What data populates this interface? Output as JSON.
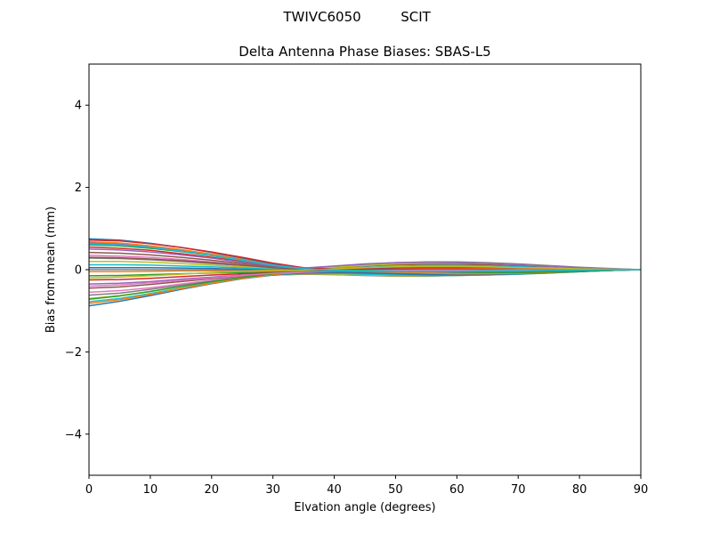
{
  "figure": {
    "suptitle_left": "TWIVC6050",
    "suptitle_right": "SCIT"
  },
  "chart_data": {
    "type": "line",
    "title": "Delta Antenna Phase Biases: SBAS-L5",
    "xlabel": "Elvation angle (degrees)",
    "ylabel": "Bias from mean (mm)",
    "xlim": [
      0,
      90
    ],
    "ylim": [
      -5,
      5
    ],
    "xticks": [
      0,
      10,
      20,
      30,
      40,
      50,
      60,
      70,
      80,
      90
    ],
    "yticks": [
      -4,
      -2,
      0,
      2,
      4
    ],
    "grid": false,
    "legend": "none",
    "x": [
      0,
      5,
      10,
      15,
      20,
      25,
      30,
      35,
      40,
      45,
      50,
      55,
      60,
      65,
      70,
      75,
      80,
      85,
      90
    ],
    "series": [
      {
        "color": "#1f77b4",
        "values": [
          0.75,
          0.72,
          0.64,
          0.54,
          0.42,
          0.28,
          0.13,
          0.02,
          -0.05,
          -0.08,
          -0.09,
          -0.08,
          -0.07,
          -0.05,
          -0.04,
          -0.03,
          -0.02,
          -0.01,
          0.0
        ]
      },
      {
        "color": "#ff7f0e",
        "values": [
          0.68,
          0.65,
          0.58,
          0.49,
          0.38,
          0.25,
          0.11,
          0.01,
          -0.04,
          -0.06,
          -0.07,
          -0.06,
          -0.05,
          -0.04,
          -0.03,
          -0.02,
          -0.01,
          0.0,
          0.0
        ]
      },
      {
        "color": "#2ca02c",
        "values": [
          0.6,
          0.58,
          0.52,
          0.44,
          0.34,
          0.22,
          0.1,
          0.02,
          -0.02,
          -0.03,
          -0.03,
          -0.03,
          -0.02,
          -0.02,
          -0.01,
          -0.01,
          0.0,
          0.0,
          0.0
        ]
      },
      {
        "color": "#d62728",
        "values": [
          0.55,
          0.52,
          0.47,
          0.39,
          0.3,
          0.19,
          0.08,
          0.0,
          -0.02,
          -0.01,
          0.01,
          0.03,
          0.04,
          0.04,
          0.04,
          0.03,
          0.02,
          0.01,
          0.0
        ]
      },
      {
        "color": "#9467bd",
        "values": [
          0.5,
          0.48,
          0.43,
          0.36,
          0.28,
          0.18,
          0.08,
          0.01,
          0.02,
          0.05,
          0.07,
          0.08,
          0.08,
          0.07,
          0.06,
          0.04,
          0.03,
          0.01,
          0.0
        ]
      },
      {
        "color": "#8c564b",
        "values": [
          0.42,
          0.4,
          0.36,
          0.3,
          0.23,
          0.15,
          0.06,
          0.02,
          0.05,
          0.09,
          0.12,
          0.13,
          0.13,
          0.12,
          0.1,
          0.07,
          0.04,
          0.02,
          0.0
        ]
      },
      {
        "color": "#e377c2",
        "values": [
          0.35,
          0.33,
          0.3,
          0.25,
          0.19,
          0.12,
          0.05,
          0.03,
          0.07,
          0.12,
          0.15,
          0.17,
          0.17,
          0.15,
          0.12,
          0.09,
          0.05,
          0.02,
          0.0
        ]
      },
      {
        "color": "#7f7f7f",
        "values": [
          0.28,
          0.27,
          0.24,
          0.2,
          0.15,
          0.1,
          0.04,
          0.03,
          0.08,
          0.13,
          0.17,
          0.19,
          0.19,
          0.17,
          0.14,
          0.1,
          0.06,
          0.03,
          0.0
        ]
      },
      {
        "color": "#bcbd22",
        "values": [
          0.2,
          0.2,
          0.18,
          0.15,
          0.11,
          0.07,
          0.03,
          0.02,
          0.06,
          0.1,
          0.14,
          0.16,
          0.16,
          0.15,
          0.12,
          0.09,
          0.05,
          0.02,
          0.0
        ]
      },
      {
        "color": "#17becf",
        "values": [
          0.12,
          0.12,
          0.11,
          0.09,
          0.07,
          0.04,
          0.01,
          0.0,
          0.03,
          0.06,
          0.08,
          0.1,
          0.1,
          0.09,
          0.07,
          0.05,
          0.03,
          0.01,
          0.0
        ]
      },
      {
        "color": "#1f77b4",
        "values": [
          0.05,
          0.05,
          0.05,
          0.04,
          0.03,
          0.01,
          -0.01,
          -0.02,
          0.0,
          0.03,
          0.05,
          0.06,
          0.06,
          0.05,
          0.04,
          0.03,
          0.02,
          0.01,
          0.0
        ]
      },
      {
        "color": "#ff7f0e",
        "values": [
          -0.05,
          -0.05,
          -0.04,
          -0.03,
          -0.03,
          -0.03,
          -0.04,
          -0.04,
          -0.02,
          0.0,
          0.02,
          0.03,
          0.03,
          0.03,
          0.02,
          0.02,
          0.01,
          0.0,
          0.0
        ]
      },
      {
        "color": "#2ca02c",
        "values": [
          -0.15,
          -0.14,
          -0.12,
          -0.1,
          -0.08,
          -0.07,
          -0.06,
          -0.05,
          -0.03,
          -0.01,
          0.0,
          0.01,
          0.01,
          0.01,
          0.01,
          0.0,
          0.0,
          0.0,
          0.0
        ]
      },
      {
        "color": "#d62728",
        "values": [
          -0.25,
          -0.24,
          -0.21,
          -0.17,
          -0.13,
          -0.1,
          -0.08,
          -0.07,
          -0.06,
          -0.05,
          -0.05,
          -0.04,
          -0.04,
          -0.03,
          -0.03,
          -0.02,
          -0.01,
          -0.01,
          0.0
        ]
      },
      {
        "color": "#9467bd",
        "values": [
          -0.35,
          -0.33,
          -0.29,
          -0.23,
          -0.18,
          -0.13,
          -0.1,
          -0.09,
          -0.09,
          -0.1,
          -0.1,
          -0.09,
          -0.08,
          -0.07,
          -0.05,
          -0.04,
          -0.02,
          -0.01,
          0.0
        ]
      },
      {
        "color": "#8c564b",
        "values": [
          -0.45,
          -0.42,
          -0.36,
          -0.29,
          -0.22,
          -0.16,
          -0.12,
          -0.1,
          -0.11,
          -0.12,
          -0.13,
          -0.12,
          -0.11,
          -0.09,
          -0.07,
          -0.05,
          -0.03,
          -0.01,
          0.0
        ]
      },
      {
        "color": "#e377c2",
        "values": [
          -0.55,
          -0.51,
          -0.44,
          -0.35,
          -0.26,
          -0.18,
          -0.13,
          -0.11,
          -0.12,
          -0.14,
          -0.15,
          -0.14,
          -0.12,
          -0.1,
          -0.08,
          -0.06,
          -0.04,
          -0.02,
          0.0
        ]
      },
      {
        "color": "#7f7f7f",
        "values": [
          -0.62,
          -0.57,
          -0.48,
          -0.38,
          -0.28,
          -0.19,
          -0.13,
          -0.11,
          -0.12,
          -0.14,
          -0.16,
          -0.16,
          -0.14,
          -0.12,
          -0.1,
          -0.07,
          -0.04,
          -0.02,
          0.0
        ]
      },
      {
        "color": "#bcbd22",
        "values": [
          -0.7,
          -0.63,
          -0.53,
          -0.41,
          -0.3,
          -0.2,
          -0.13,
          -0.1,
          -0.11,
          -0.13,
          -0.15,
          -0.15,
          -0.14,
          -0.13,
          -0.11,
          -0.08,
          -0.05,
          -0.02,
          0.0
        ]
      },
      {
        "color": "#17becf",
        "values": [
          -0.78,
          -0.7,
          -0.58,
          -0.45,
          -0.32,
          -0.21,
          -0.13,
          -0.09,
          -0.09,
          -0.11,
          -0.13,
          -0.14,
          -0.14,
          -0.13,
          -0.11,
          -0.08,
          -0.05,
          -0.02,
          0.0
        ]
      },
      {
        "color": "#1f77b4",
        "values": [
          -0.88,
          -0.77,
          -0.63,
          -0.48,
          -0.34,
          -0.22,
          -0.13,
          -0.08,
          -0.07,
          -0.08,
          -0.1,
          -0.12,
          -0.13,
          -0.12,
          -0.1,
          -0.08,
          -0.05,
          -0.02,
          0.0
        ]
      },
      {
        "color": "#ff7f0e",
        "values": [
          -0.82,
          -0.73,
          -0.6,
          -0.46,
          -0.33,
          -0.21,
          -0.12,
          -0.06,
          -0.04,
          -0.04,
          -0.06,
          -0.08,
          -0.1,
          -0.1,
          -0.09,
          -0.07,
          -0.04,
          -0.02,
          0.0
        ]
      },
      {
        "color": "#2ca02c",
        "values": [
          -0.72,
          -0.64,
          -0.53,
          -0.41,
          -0.29,
          -0.19,
          -0.1,
          -0.05,
          -0.02,
          -0.01,
          -0.02,
          -0.04,
          -0.06,
          -0.07,
          -0.07,
          -0.06,
          -0.04,
          -0.02,
          0.0
        ]
      },
      {
        "color": "#d62728",
        "values": [
          0.72,
          0.7,
          0.63,
          0.54,
          0.43,
          0.3,
          0.16,
          0.05,
          0.02,
          0.02,
          0.02,
          0.02,
          0.02,
          0.01,
          0.01,
          0.01,
          0.0,
          0.0,
          0.0
        ]
      },
      {
        "color": "#9467bd",
        "values": [
          0.65,
          0.62,
          0.55,
          0.46,
          0.35,
          0.23,
          0.1,
          0.04,
          0.09,
          0.14,
          0.17,
          0.18,
          0.17,
          0.15,
          0.12,
          0.09,
          0.05,
          0.02,
          0.0
        ]
      },
      {
        "color": "#8c564b",
        "values": [
          0.3,
          0.29,
          0.26,
          0.22,
          0.17,
          0.11,
          0.05,
          0.0,
          -0.02,
          -0.03,
          -0.04,
          -0.04,
          -0.03,
          -0.03,
          -0.02,
          -0.01,
          -0.01,
          0.0,
          0.0
        ]
      },
      {
        "color": "#e377c2",
        "values": [
          -0.4,
          -0.37,
          -0.32,
          -0.26,
          -0.2,
          -0.14,
          -0.09,
          -0.06,
          -0.04,
          -0.03,
          -0.02,
          -0.01,
          -0.01,
          -0.01,
          0.0,
          0.0,
          0.0,
          0.0,
          0.0
        ]
      },
      {
        "color": "#7f7f7f",
        "values": [
          0.0,
          0.0,
          0.0,
          0.0,
          0.0,
          -0.01,
          -0.02,
          -0.03,
          -0.04,
          -0.05,
          -0.05,
          -0.05,
          -0.04,
          -0.03,
          -0.03,
          -0.02,
          -0.01,
          0.0,
          0.0
        ]
      },
      {
        "color": "#bcbd22",
        "values": [
          -0.2,
          -0.18,
          -0.15,
          -0.11,
          -0.07,
          -0.04,
          -0.02,
          -0.01,
          0.02,
          0.05,
          0.07,
          0.08,
          0.08,
          0.07,
          0.05,
          0.04,
          0.02,
          0.01,
          0.0
        ]
      },
      {
        "color": "#17becf",
        "values": [
          0.62,
          0.6,
          0.54,
          0.45,
          0.35,
          0.23,
          0.11,
          0.02,
          -0.01,
          -0.03,
          -0.04,
          -0.04,
          -0.04,
          -0.03,
          -0.03,
          -0.02,
          -0.01,
          0.0,
          0.0
        ]
      }
    ]
  }
}
